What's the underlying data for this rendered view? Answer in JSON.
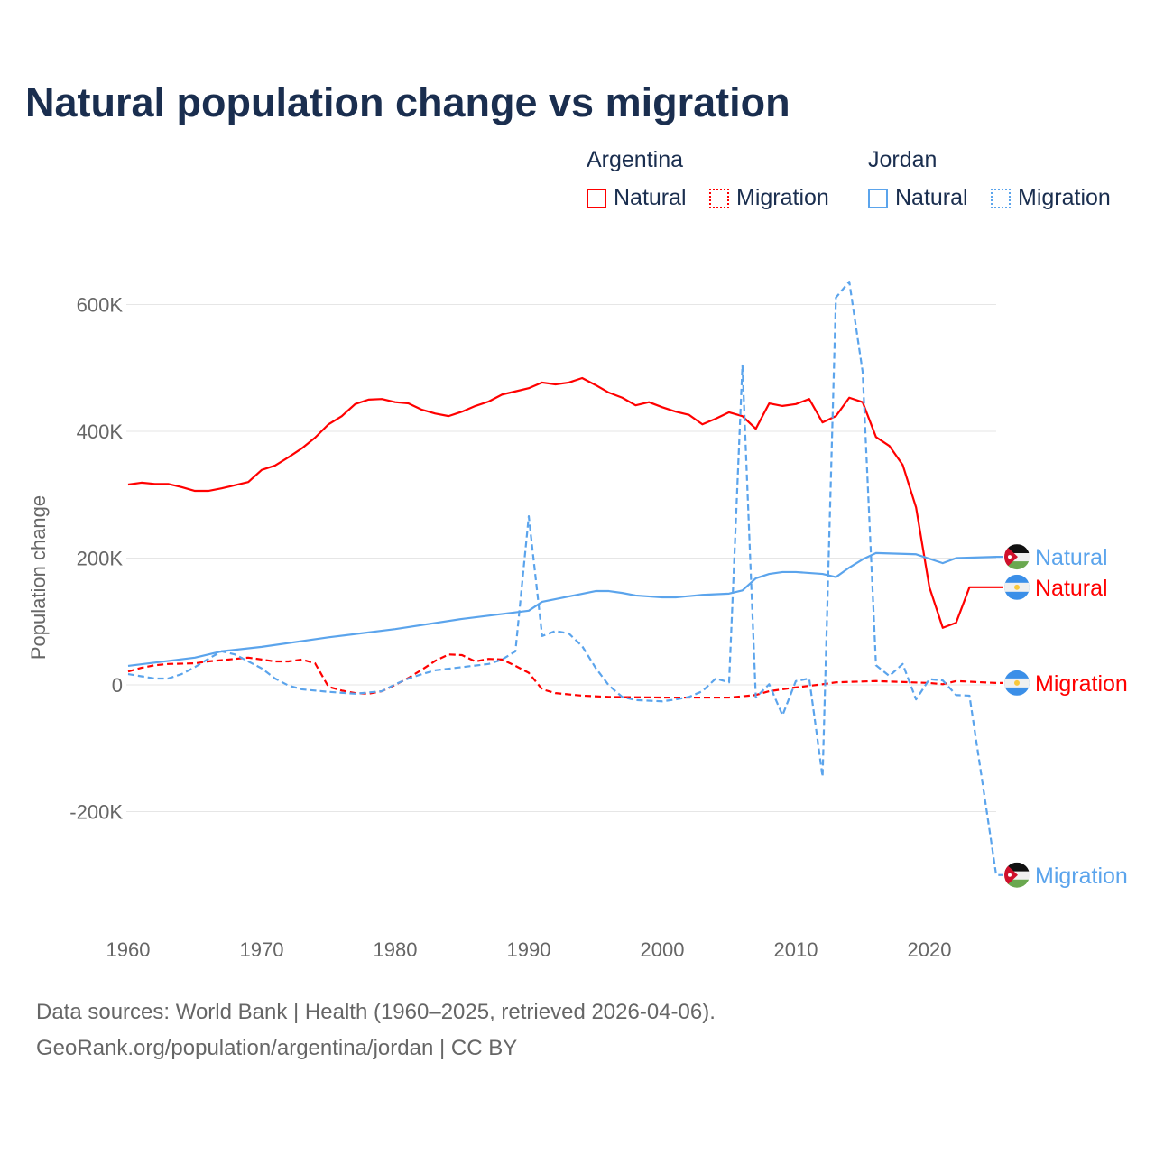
{
  "title": "Natural population change vs migration",
  "legend": {
    "groups": [
      {
        "country": "Argentina",
        "items": [
          "Natural",
          "Migration"
        ]
      },
      {
        "country": "Jordan",
        "items": [
          "Natural",
          "Migration"
        ]
      }
    ]
  },
  "footer": {
    "line1": "Data sources: World Bank | Health (1960–2025, retrieved 2026-04-06).",
    "line2": "GeoRank.org/population/argentina/jordan | CC BY"
  },
  "colors": {
    "argentina": "#ff0000",
    "jordan": "#5ba4ec",
    "text": "#1a2e4f",
    "grid": "#e6e6e6",
    "axis_text": "#666666"
  },
  "chart_data": {
    "type": "line",
    "title": "Natural population change vs migration",
    "xlabel": "",
    "ylabel": "Population change",
    "xlim": [
      1960,
      2025
    ],
    "ylim": [
      -300000,
      650000
    ],
    "x_ticks": [
      1960,
      1970,
      1980,
      1990,
      2000,
      2010,
      2020
    ],
    "y_ticks": [
      {
        "value": -200000,
        "label": "-200K"
      },
      {
        "value": 0,
        "label": "0"
      },
      {
        "value": 200000,
        "label": "200K"
      },
      {
        "value": 400000,
        "label": "400K"
      },
      {
        "value": 600000,
        "label": "600K"
      }
    ],
    "grid": true,
    "legend_placement": "top-right",
    "series": [
      {
        "name": "Argentina Natural",
        "label": "Natural",
        "country": "argentina",
        "color": "#ff0000",
        "dash": false,
        "points": [
          [
            1960,
            316
          ],
          [
            1961,
            319
          ],
          [
            1962,
            317
          ],
          [
            1963,
            317
          ],
          [
            1964,
            312
          ],
          [
            1965,
            306
          ],
          [
            1966,
            306
          ],
          [
            1967,
            310
          ],
          [
            1968,
            315
          ],
          [
            1969,
            320
          ],
          [
            1970,
            339
          ],
          [
            1971,
            346
          ],
          [
            1972,
            359
          ],
          [
            1973,
            373
          ],
          [
            1974,
            390
          ],
          [
            1975,
            411
          ],
          [
            1976,
            424
          ],
          [
            1977,
            443
          ],
          [
            1978,
            450
          ],
          [
            1979,
            451
          ],
          [
            1980,
            446
          ],
          [
            1981,
            444
          ],
          [
            1982,
            434
          ],
          [
            1983,
            428
          ],
          [
            1984,
            424
          ],
          [
            1985,
            431
          ],
          [
            1986,
            440
          ],
          [
            1987,
            447
          ],
          [
            1988,
            458
          ],
          [
            1989,
            463
          ],
          [
            1990,
            468
          ],
          [
            1991,
            477
          ],
          [
            1992,
            474
          ],
          [
            1993,
            477
          ],
          [
            1994,
            484
          ],
          [
            1995,
            473
          ],
          [
            1996,
            461
          ],
          [
            1997,
            453
          ],
          [
            1998,
            441
          ],
          [
            1999,
            446
          ],
          [
            2000,
            438
          ],
          [
            2001,
            431
          ],
          [
            2002,
            426
          ],
          [
            2003,
            411
          ],
          [
            2004,
            420
          ],
          [
            2005,
            430
          ],
          [
            2006,
            424
          ],
          [
            2007,
            404
          ],
          [
            2008,
            444
          ],
          [
            2009,
            440
          ],
          [
            2010,
            443
          ],
          [
            2011,
            451
          ],
          [
            2012,
            414
          ],
          [
            2013,
            424
          ],
          [
            2014,
            453
          ],
          [
            2015,
            446
          ],
          [
            2016,
            391
          ],
          [
            2017,
            377
          ],
          [
            2018,
            347
          ],
          [
            2019,
            280
          ],
          [
            2020,
            154
          ],
          [
            2021,
            90
          ],
          [
            2022,
            98
          ],
          [
            2023,
            154
          ]
        ]
      },
      {
        "name": "Argentina Migration",
        "label": "Migration",
        "country": "argentina",
        "color": "#ff0000",
        "dash": true,
        "points": [
          [
            1960,
            21
          ],
          [
            1961,
            27
          ],
          [
            1962,
            31
          ],
          [
            1963,
            33
          ],
          [
            1965,
            34
          ],
          [
            1966,
            37
          ],
          [
            1968,
            41
          ],
          [
            1969,
            43
          ],
          [
            1970,
            40
          ],
          [
            1971,
            37
          ],
          [
            1972,
            37
          ],
          [
            1973,
            40
          ],
          [
            1974,
            34
          ],
          [
            1975,
            -3
          ],
          [
            1976,
            -9
          ],
          [
            1977,
            -13
          ],
          [
            1978,
            -14
          ],
          [
            1979,
            -10
          ],
          [
            1980,
            0
          ],
          [
            1981,
            11
          ],
          [
            1982,
            24
          ],
          [
            1983,
            38
          ],
          [
            1984,
            48
          ],
          [
            1985,
            47
          ],
          [
            1986,
            37
          ],
          [
            1987,
            41
          ],
          [
            1988,
            40
          ],
          [
            1989,
            30
          ],
          [
            1990,
            19
          ],
          [
            1991,
            -7
          ],
          [
            1992,
            -13
          ],
          [
            1994,
            -17
          ],
          [
            1996,
            -19
          ],
          [
            2000,
            -20
          ],
          [
            2005,
            -20
          ],
          [
            2007,
            -16
          ],
          [
            2008,
            -10
          ],
          [
            2010,
            -4
          ],
          [
            2012,
            1
          ],
          [
            2013,
            4
          ],
          [
            2016,
            6
          ],
          [
            2020,
            3
          ],
          [
            2021,
            1
          ],
          [
            2022,
            6
          ],
          [
            2025,
            3
          ]
        ]
      },
      {
        "name": "Jordan Natural",
        "label": "Natural",
        "country": "jordan",
        "color": "#5ba4ec",
        "dash": false,
        "points": [
          [
            1960,
            30
          ],
          [
            1965,
            43
          ],
          [
            1967,
            53
          ],
          [
            1970,
            60
          ],
          [
            1975,
            75
          ],
          [
            1980,
            88
          ],
          [
            1985,
            104
          ],
          [
            1990,
            117
          ],
          [
            1991,
            131
          ],
          [
            1995,
            148
          ],
          [
            1996,
            148
          ],
          [
            1997,
            145
          ],
          [
            1998,
            141
          ],
          [
            2000,
            138
          ],
          [
            2001,
            138
          ],
          [
            2003,
            142
          ],
          [
            2005,
            144
          ],
          [
            2006,
            149
          ],
          [
            2007,
            168
          ],
          [
            2008,
            175
          ],
          [
            2009,
            178
          ],
          [
            2010,
            178
          ],
          [
            2012,
            175
          ],
          [
            2013,
            170
          ],
          [
            2014,
            185
          ],
          [
            2015,
            198
          ],
          [
            2016,
            208
          ],
          [
            2019,
            206
          ],
          [
            2021,
            192
          ],
          [
            2022,
            200
          ],
          [
            2025,
            202
          ]
        ]
      },
      {
        "name": "Jordan Migration",
        "label": "Migration",
        "country": "jordan",
        "color": "#5ba4ec",
        "dash": true,
        "points": [
          [
            1960,
            17
          ],
          [
            1962,
            10
          ],
          [
            1963,
            10
          ],
          [
            1964,
            17
          ],
          [
            1965,
            28
          ],
          [
            1966,
            41
          ],
          [
            1967,
            53
          ],
          [
            1968,
            48
          ],
          [
            1969,
            37
          ],
          [
            1970,
            26
          ],
          [
            1971,
            10
          ],
          [
            1972,
            -1
          ],
          [
            1973,
            -7
          ],
          [
            1975,
            -11
          ],
          [
            1977,
            -14
          ],
          [
            1979,
            -10
          ],
          [
            1980,
            1
          ],
          [
            1981,
            10
          ],
          [
            1982,
            17
          ],
          [
            1983,
            23
          ],
          [
            1985,
            28
          ],
          [
            1987,
            33
          ],
          [
            1988,
            40
          ],
          [
            1989,
            53
          ],
          [
            1990,
            266
          ],
          [
            1991,
            77
          ],
          [
            1992,
            85
          ],
          [
            1993,
            81
          ],
          [
            1994,
            61
          ],
          [
            1995,
            27
          ],
          [
            1996,
            -1
          ],
          [
            1997,
            -19
          ],
          [
            1998,
            -24
          ],
          [
            2000,
            -26
          ],
          [
            2001,
            -23
          ],
          [
            2002,
            -19
          ],
          [
            2003,
            -10
          ],
          [
            2004,
            10
          ],
          [
            2005,
            4
          ],
          [
            2006,
            504
          ],
          [
            2007,
            -20
          ],
          [
            2008,
            1
          ],
          [
            2009,
            -48
          ],
          [
            2010,
            6
          ],
          [
            2011,
            10
          ],
          [
            2012,
            -145
          ],
          [
            2013,
            611
          ],
          [
            2014,
            636
          ],
          [
            2015,
            494
          ],
          [
            2016,
            31
          ],
          [
            2017,
            14
          ],
          [
            2018,
            33
          ],
          [
            2019,
            -23
          ],
          [
            2020,
            9
          ],
          [
            2021,
            7
          ],
          [
            2022,
            -16
          ],
          [
            2023,
            -17
          ],
          [
            2024,
            -158
          ],
          [
            2025,
            -300
          ]
        ]
      }
    ],
    "value_unit": "thousands"
  }
}
